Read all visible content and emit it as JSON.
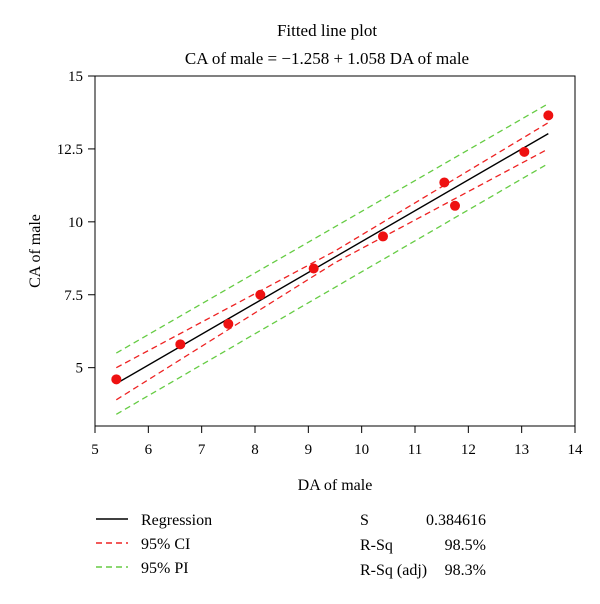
{
  "chart_data": {
    "type": "scatter",
    "title": "Fitted line plot",
    "subtitle": "CA of male = −1.258 + 1.058 DA of male",
    "xlabel": "DA of male",
    "ylabel": "CA of male",
    "xlim": [
      5,
      14
    ],
    "ylim": [
      3,
      15
    ],
    "xticks": [
      5,
      6,
      7,
      8,
      9,
      10,
      11,
      12,
      13,
      14
    ],
    "yticks": [
      5,
      7.5,
      10,
      12.5,
      15
    ],
    "ytick_labels": [
      "5",
      "7.5",
      "10",
      "12.5",
      "15"
    ],
    "grid": false,
    "regression": {
      "intercept": -1.258,
      "slope": 1.058,
      "x_range": [
        5.4,
        13.5
      ]
    },
    "points": [
      {
        "x": 5.4,
        "y": 4.6
      },
      {
        "x": 6.6,
        "y": 5.8
      },
      {
        "x": 7.5,
        "y": 6.5
      },
      {
        "x": 8.1,
        "y": 7.5
      },
      {
        "x": 9.1,
        "y": 8.4
      },
      {
        "x": 10.4,
        "y": 9.5
      },
      {
        "x": 11.55,
        "y": 11.35
      },
      {
        "x": 11.75,
        "y": 10.55
      },
      {
        "x": 13.05,
        "y": 12.4
      },
      {
        "x": 13.5,
        "y": 13.65
      }
    ],
    "ci_band": {
      "upper": [
        [
          5.4,
          5.0
        ],
        [
          9.5,
          9.0
        ],
        [
          13.5,
          13.4
        ]
      ],
      "lower": [
        [
          5.4,
          3.9
        ],
        [
          9.5,
          8.6
        ],
        [
          13.5,
          12.5
        ]
      ]
    },
    "pi_band": {
      "upper": [
        [
          5.4,
          5.5
        ],
        [
          13.5,
          14.05
        ]
      ],
      "lower": [
        [
          5.4,
          3.4
        ],
        [
          13.5,
          12.0
        ]
      ]
    },
    "colors": {
      "points": "#ee1111",
      "regression": "#000000",
      "ci": "#ee2222",
      "pi": "#66cc44"
    },
    "legend": {
      "placement": "bottom-left",
      "items": [
        {
          "label": "Regression",
          "style": "solid",
          "color": "#000000"
        },
        {
          "label": "95% CI",
          "style": "dashed",
          "color": "#ee2222"
        },
        {
          "label": "95% PI",
          "style": "dashed",
          "color": "#66cc44"
        }
      ]
    },
    "stats": [
      {
        "name": "S",
        "value": "0.384616"
      },
      {
        "name": "R-Sq",
        "value": "98.5%"
      },
      {
        "name": "R-Sq (adj)",
        "value": "98.3%"
      }
    ]
  }
}
